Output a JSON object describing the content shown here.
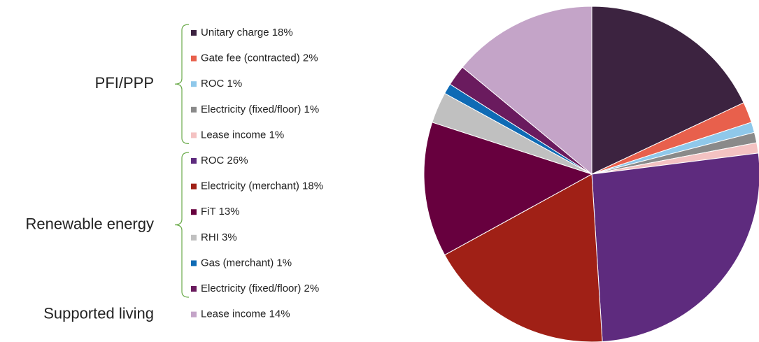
{
  "chart_data": {
    "type": "pie",
    "groups": [
      {
        "name": "PFI/PPP",
        "categories": [
          "Unitary charge",
          "Gate fee (contracted)",
          "ROC",
          "Electricity (fixed/floor)",
          "Lease income"
        ],
        "values": [
          18,
          2,
          1,
          1,
          1
        ],
        "value_labels": [
          "18%",
          "2%",
          "1%",
          "1%",
          "1%"
        ],
        "colors": [
          "#3c2340",
          "#e8604c",
          "#8fc8ea",
          "#8a8a8a",
          "#f4c2c2"
        ]
      },
      {
        "name": "Renewable energy",
        "categories": [
          "ROC",
          "Electricity (merchant)",
          "FiT",
          "RHI",
          "Gas (merchant)",
          "Electricity (fixed/floor)"
        ],
        "values": [
          26,
          18,
          13,
          3,
          1,
          2
        ],
        "value_labels": [
          "26%",
          "18%",
          "13%",
          "3%",
          "1%",
          "2%"
        ],
        "colors": [
          "#5e2b7e",
          "#a02016",
          "#67003e",
          "#c0c0c0",
          "#0f6bb5",
          "#6a1b5e"
        ]
      },
      {
        "name": "Supported living",
        "categories": [
          "Lease income"
        ],
        "values": [
          14
        ],
        "value_labels": [
          "14%"
        ],
        "colors": [
          "#c4a4c8"
        ]
      }
    ]
  }
}
